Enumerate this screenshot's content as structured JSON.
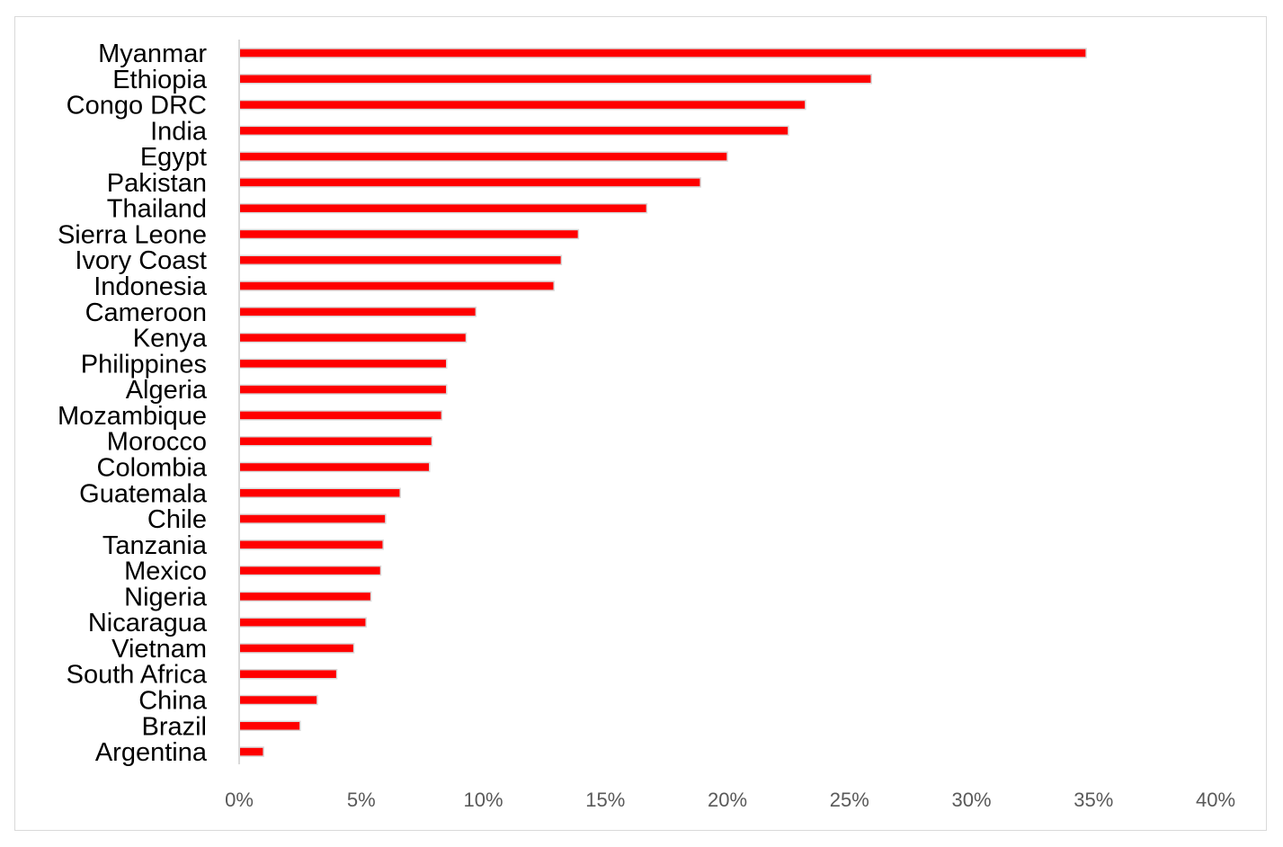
{
  "colors": {
    "bar": "#ff0000",
    "bar_outline": "#d9d9d9",
    "axis": "#d9d9d9",
    "category_text": "#000000",
    "tick_text": "#595959"
  },
  "chart_data": {
    "type": "bar",
    "orientation": "horizontal",
    "categories": [
      "Myanmar",
      "Ethiopia",
      "Congo DRC",
      "India",
      "Egypt",
      "Pakistan",
      "Thailand",
      "Sierra Leone",
      "Ivory Coast",
      "Indonesia",
      "Cameroon",
      "Kenya",
      "Philippines",
      "Algeria",
      "Mozambique",
      "Morocco",
      "Colombia",
      "Guatemala",
      "Chile",
      "Tanzania",
      "Mexico",
      "Nigeria",
      "Nicaragua",
      "Vietnam",
      "South Africa",
      "China",
      "Brazil",
      "Argentina"
    ],
    "values": [
      34.7,
      25.9,
      23.2,
      22.5,
      20.0,
      18.9,
      16.7,
      13.9,
      13.2,
      12.9,
      9.7,
      9.3,
      8.5,
      8.5,
      8.3,
      7.9,
      7.8,
      6.6,
      6.0,
      5.9,
      5.8,
      5.4,
      5.2,
      4.7,
      4.0,
      3.2,
      2.5,
      1.0
    ],
    "xlim": [
      0,
      40
    ],
    "xticks": [
      0,
      5,
      10,
      15,
      20,
      25,
      30,
      35,
      40
    ],
    "xtick_labels": [
      "0%",
      "5%",
      "10%",
      "15%",
      "20%",
      "25%",
      "30%",
      "35%",
      "40%"
    ],
    "title": "",
    "xlabel": "",
    "ylabel": "",
    "legend": "none",
    "grid": false
  }
}
